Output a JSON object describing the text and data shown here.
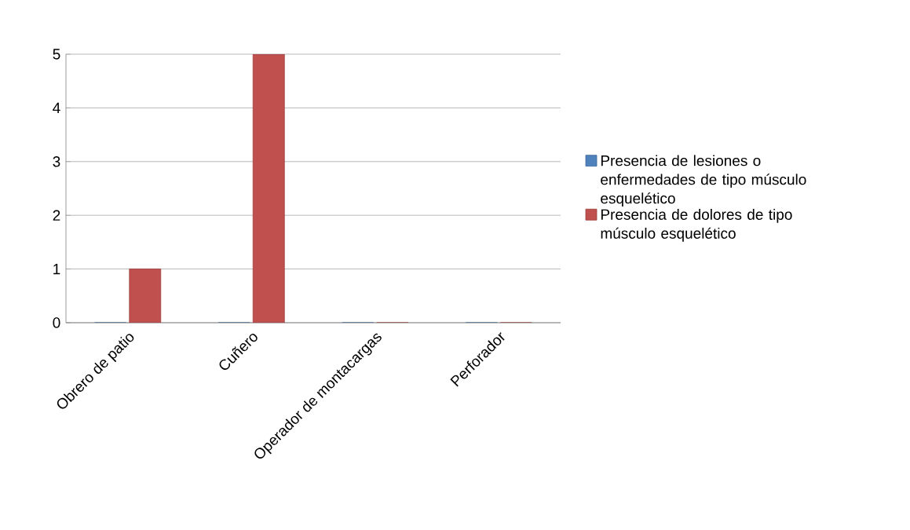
{
  "chart_data": {
    "type": "bar",
    "categories": [
      "Obrero de patio",
      "Cuñero",
      "Operador de montacargas",
      "Perforador"
    ],
    "series": [
      {
        "name": "Presencia de lesiones o enfermedades de tipo músculo esquelético",
        "color": "#4f81bd",
        "values": [
          0,
          0,
          0,
          0
        ]
      },
      {
        "name": "Presencia de dolores de tipo músculo esquelético",
        "color": "#c0504d",
        "values": [
          1,
          5,
          0,
          0
        ]
      }
    ],
    "ylim": [
      0,
      5
    ],
    "yticks": [
      0,
      1,
      2,
      3,
      4,
      5
    ],
    "grid": "y",
    "legend": "right"
  }
}
